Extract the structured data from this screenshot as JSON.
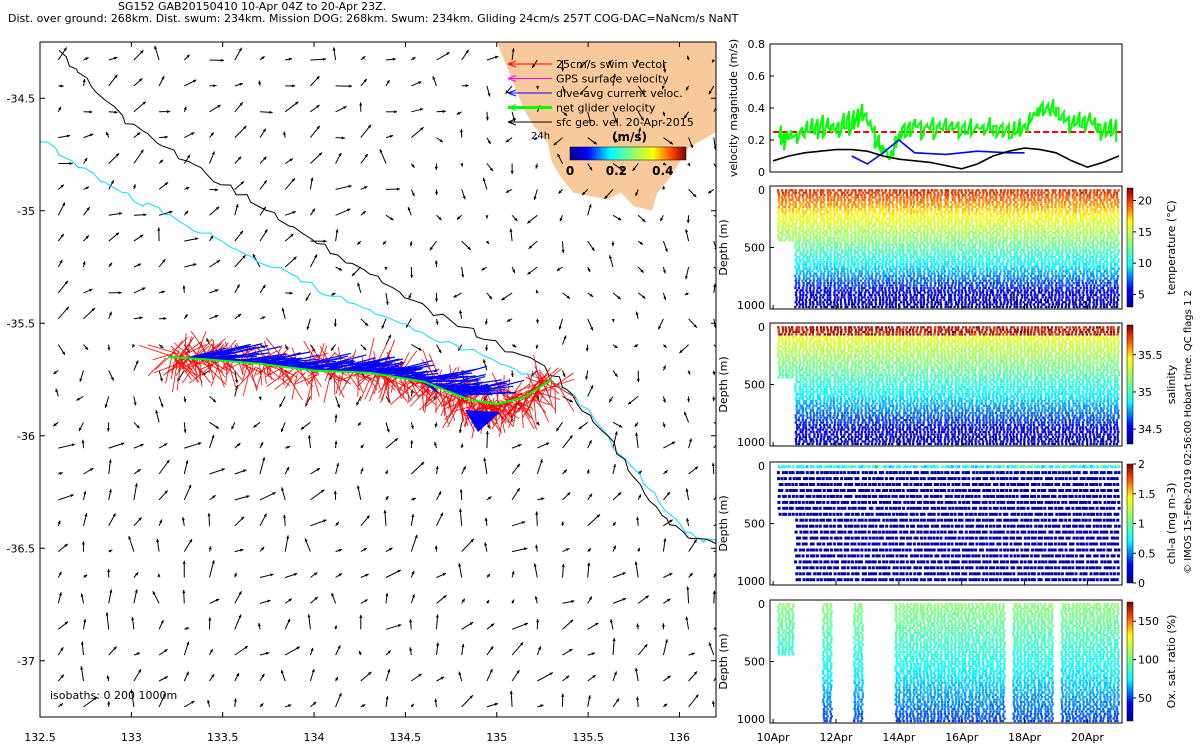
{
  "header": {
    "line1": "SG152 GAB20150410 10-Apr 04Z to 20-Apr 23Z.",
    "line2": "Dist. over ground: 268km. Dist. swum: 234km. Mission DOG: 268km. Swum: 234km. Gliding 24cm/s 257T COG-DAC=NaNcm/s NaNT"
  },
  "colors": {
    "land": "#f8c99a",
    "red": "#ff0000",
    "blue": "#0000ff",
    "green": "#00ff00",
    "magenta": "#ff00ff",
    "cyan": "#00e0ff"
  },
  "chart_data": [
    {
      "type": "scatter",
      "name": "map",
      "xlim": [
        132.5,
        136.2
      ],
      "ylim": [
        -37.25,
        -34.25
      ],
      "xticks": [
        "132.5",
        "133",
        "133.5",
        "134",
        "134.5",
        "135",
        "135.5",
        "136"
      ],
      "yticks": [
        "-34.5",
        "-35",
        "-35.5",
        "-36",
        "-36.5",
        "-37"
      ],
      "legend": [
        {
          "label": "25cm/s swim vector",
          "color": "#ff0000"
        },
        {
          "label": "GPS surface velocity",
          "color": "#ff00ff"
        },
        {
          "label": "dive-avg current veloc.",
          "color": "#0000ff"
        },
        {
          "label": "net glider velocity",
          "color": "#00ff00"
        },
        {
          "label": "sfc geo. vel. 20-Apr-2015",
          "color": "#000000"
        }
      ],
      "colorbar": {
        "label": "(m/s)",
        "ticks": [
          "0",
          "0.2",
          "0.4"
        ],
        "range": [
          0,
          0.5
        ]
      },
      "scale_label": "24h",
      "isobaths_label": "isobaths: 0   200  1000m",
      "track": {
        "lon": [
          135.3,
          135.15,
          135.0,
          134.85,
          134.6,
          134.3,
          134.0,
          133.7,
          133.4,
          133.2
        ],
        "lat": [
          -35.75,
          -35.83,
          -35.86,
          -35.84,
          -35.76,
          -35.72,
          -35.71,
          -35.68,
          -35.66,
          -35.65
        ]
      },
      "isobath_1000m": {
        "lon": [
          132.6,
          132.75,
          132.9,
          133.1,
          133.3,
          133.5,
          133.7,
          133.9,
          134.1,
          134.3,
          134.5,
          134.7,
          134.9,
          135.1,
          135.3,
          135.45,
          135.6,
          135.75,
          135.9,
          136.05,
          136.2
        ],
        "lat": [
          -34.3,
          -34.42,
          -34.55,
          -34.67,
          -34.78,
          -34.88,
          -34.98,
          -35.08,
          -35.18,
          -35.28,
          -35.38,
          -35.47,
          -35.55,
          -35.63,
          -35.72,
          -35.85,
          -36.0,
          -36.18,
          -36.35,
          -36.45,
          -36.48
        ]
      },
      "isobath_200m": {
        "lon": [
          132.5,
          132.7,
          132.9,
          133.1,
          133.3,
          133.5,
          133.7,
          133.9,
          134.1,
          134.3,
          134.5,
          134.7,
          134.9,
          135.1,
          135.3,
          135.5,
          135.65,
          135.8,
          135.95,
          136.1,
          136.2
        ],
        "lat": [
          -34.68,
          -34.8,
          -34.9,
          -34.98,
          -35.06,
          -35.14,
          -35.22,
          -35.3,
          -35.38,
          -35.45,
          -35.52,
          -35.58,
          -35.64,
          -35.7,
          -35.76,
          -35.88,
          -36.05,
          -36.2,
          -36.36,
          -36.46,
          -36.48
        ]
      }
    },
    {
      "type": "line",
      "name": "velocity",
      "ylabel": "velocity magnitude (m/s)",
      "ylim": [
        0,
        0.8
      ],
      "yticks": [
        "0",
        "0.2",
        "0.4",
        "0.6",
        "0.8"
      ],
      "xlim": [
        9.9,
        21.1
      ],
      "series": [
        {
          "name": "swim vector 25cm/s",
          "color": "#ff0000",
          "x": [
            10.0,
            21.1
          ],
          "values": [
            0.25,
            0.25
          ]
        },
        {
          "name": "net glider velocity",
          "color": "#00ff00",
          "x": [
            10.2,
            10.5,
            11.0,
            11.5,
            12.0,
            12.5,
            12.9,
            13.3,
            13.7,
            14.1,
            14.6,
            15.2,
            15.8,
            16.4,
            17.0,
            17.6,
            18.1,
            18.5,
            19.0,
            19.5,
            20.0,
            20.5,
            21.0
          ],
          "values": [
            0.25,
            0.22,
            0.26,
            0.3,
            0.29,
            0.33,
            0.38,
            0.22,
            0.1,
            0.28,
            0.3,
            0.29,
            0.3,
            0.28,
            0.29,
            0.25,
            0.3,
            0.42,
            0.4,
            0.3,
            0.34,
            0.28,
            0.27
          ]
        },
        {
          "name": "dive-avg current",
          "color": "#0000ff",
          "x": [
            12.5,
            13.0,
            13.5,
            14.0,
            14.5,
            15.5,
            16.5,
            17.5,
            18.0
          ],
          "values": [
            0.1,
            0.05,
            0.12,
            0.2,
            0.12,
            0.11,
            0.13,
            0.12,
            0.12
          ]
        },
        {
          "name": "sfc geo vel",
          "color": "#000000",
          "x": [
            10.0,
            10.5,
            11.0,
            11.5,
            12.0,
            12.5,
            13.0,
            13.5,
            14.0,
            14.5,
            15.0,
            15.5,
            16.0,
            16.5,
            17.0,
            17.5,
            18.0,
            18.5,
            19.0,
            19.5,
            20.0,
            20.5,
            21.0
          ],
          "values": [
            0.07,
            0.1,
            0.12,
            0.13,
            0.14,
            0.14,
            0.13,
            0.1,
            0.08,
            0.07,
            0.06,
            0.04,
            0.02,
            0.05,
            0.1,
            0.13,
            0.15,
            0.14,
            0.12,
            0.07,
            0.03,
            0.06,
            0.1
          ]
        }
      ]
    },
    {
      "type": "heatmap",
      "name": "temperature",
      "ylabel": "Depth (m)",
      "cblabel": "temperature (°C)",
      "yticks": [
        "0",
        "500",
        "1000"
      ],
      "cbticks": [
        "5",
        "10",
        "15",
        "20"
      ],
      "crange": [
        3,
        22
      ]
    },
    {
      "type": "heatmap",
      "name": "salinity",
      "ylabel": "Depth (m)",
      "cblabel": "salinity",
      "yticks": [
        "0",
        "500",
        "1000"
      ],
      "cbticks": [
        "34.5",
        "35",
        "35.5"
      ],
      "crange": [
        34.3,
        35.9
      ]
    },
    {
      "type": "heatmap",
      "name": "chla",
      "ylabel": "Depth (m)",
      "cblabel": "chl-a (mg m-3)",
      "yticks": [
        "0",
        "500",
        "1000"
      ],
      "cbticks": [
        "0",
        "0.5",
        "1",
        "1.5",
        "2"
      ],
      "crange": [
        0,
        2
      ]
    },
    {
      "type": "heatmap",
      "name": "oxygen",
      "ylabel": "Depth (m)",
      "cblabel": "Ox. sat. ratio (%)",
      "yticks": [
        "0",
        "500",
        "1000"
      ],
      "cbticks": [
        "50",
        "100",
        "150"
      ],
      "crange": [
        20,
        175
      ]
    }
  ],
  "time_axis": {
    "ticks": [
      "10Apr",
      "12Apr",
      "14Apr",
      "16Apr",
      "18Apr",
      "20Apr"
    ]
  },
  "credit": "© IMOS 15-Feb-2019 02:56:00 Hobart time. QC flags 1  2"
}
